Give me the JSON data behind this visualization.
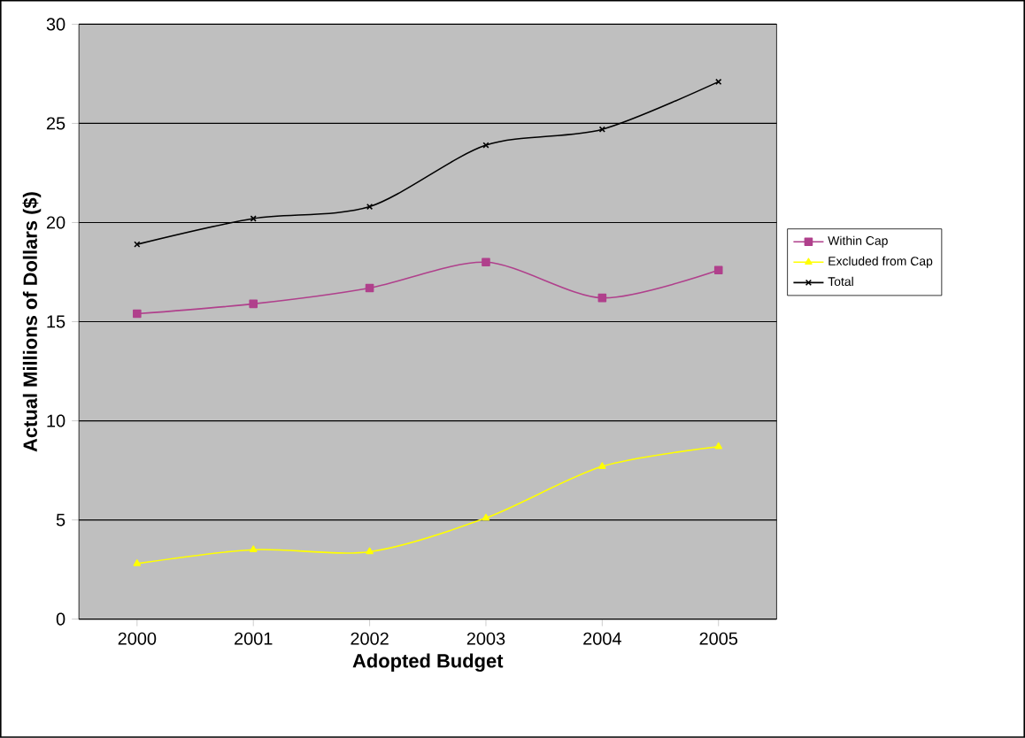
{
  "chart_data": {
    "type": "line",
    "xlabel": "Adopted Budget",
    "ylabel": "Actual Millions of Dollars ($)",
    "categories": [
      "2000",
      "2001",
      "2002",
      "2003",
      "2004",
      "2005"
    ],
    "series": [
      {
        "name": "Within Cap",
        "color": "#b0408c",
        "marker": "square",
        "values": [
          15.4,
          15.9,
          16.7,
          18.0,
          16.2,
          17.6
        ]
      },
      {
        "name": "Excluded from Cap",
        "color": "#ffff00",
        "marker": "triangle",
        "values": [
          2.8,
          3.5,
          3.4,
          5.1,
          7.7,
          8.7
        ]
      },
      {
        "name": "Total",
        "color": "#000000",
        "marker": "cross",
        "values": [
          18.9,
          20.2,
          20.8,
          23.9,
          24.7,
          27.1
        ]
      }
    ],
    "ylim": [
      0,
      30
    ],
    "yticks": [
      0,
      5,
      10,
      15,
      20,
      25,
      30
    ],
    "grid": "y",
    "legend": "right",
    "line_style": "solid"
  }
}
